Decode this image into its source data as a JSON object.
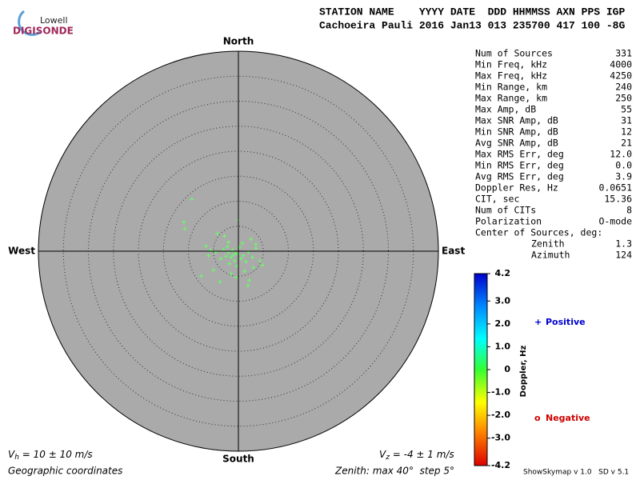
{
  "logo": {
    "top": "Lowell",
    "bottom": "DIGISONDE"
  },
  "header": {
    "line1": "STATION NAME    YYYY DATE  DDD HHMMSS AXN PPS IGP",
    "line2": "Cachoeira Pauli 2016 Jan13 013 235700 417 100 -8G"
  },
  "stats": [
    [
      "Num of Sources",
      331
    ],
    [
      "Min Freq, kHz",
      4000
    ],
    [
      "Max Freq, kHz",
      4250
    ],
    [
      "Min Range, km",
      240
    ],
    [
      "Max Range, km",
      250
    ],
    [
      "Max Amp, dB",
      55
    ],
    [
      "Max SNR Amp, dB",
      31
    ],
    [
      "Min SNR Amp, dB",
      12
    ],
    [
      "Avg SNR Amp, dB",
      21
    ],
    [
      "Max RMS Err, deg",
      "12.0"
    ],
    [
      "Min RMS Err, deg",
      "0.0"
    ],
    [
      "Avg RMS Err, deg",
      3.9
    ],
    [
      "Doppler Res, Hz",
      0.0651
    ],
    [
      "CIT, sec",
      15.36
    ],
    [
      "Num of CITs",
      8
    ],
    [
      "Polarization",
      "O-mode"
    ]
  ],
  "center": {
    "title": "Center of Sources, deg:",
    "rows": [
      [
        "Zenith",
        1.3
      ],
      [
        "Azimuth",
        124
      ]
    ]
  },
  "footer": {
    "vh": {
      "symbol": "V",
      "sub": "h",
      "text": " = 10 ± 10 m/s"
    },
    "vz": {
      "symbol": "V",
      "sub": "z",
      "text": " = -4 ± 1 m/s"
    },
    "coords": "Geographic coordinates",
    "zenith": "Zenith: max 40°  step 5°",
    "version": "ShowSkymap v 1.0   SD v 5.1"
  },
  "chart_data": {
    "type": "scatter",
    "directions": {
      "north": "North",
      "south": "South",
      "east": "East",
      "west": "West"
    },
    "rlim": [
      0,
      40
    ],
    "rticks": [
      5,
      10,
      15,
      20,
      25,
      30,
      35
    ],
    "series": [
      {
        "color": "#66ff66",
        "x": [
          -1,
          -0.5,
          -1.5,
          0,
          -2,
          0.5,
          -1.2,
          -0.8,
          -2.5,
          1,
          -3,
          1.5,
          -1.8,
          0.2,
          -0.3,
          -2.2,
          2,
          -3.5,
          2.8,
          -4.5,
          3.5,
          -5.5,
          4.3,
          -6.5,
          -7.4,
          -3.7,
          1.9,
          3.5,
          0,
          -9.3,
          -10.9,
          -10.7,
          -4.2,
          -2.8,
          2.5,
          1.2,
          -1.5,
          -5,
          4.8,
          -0.5,
          0.8,
          -6,
          3,
          2.2,
          -2
        ],
        "values": [
          -0.8,
          -0.4,
          -1.2,
          -0.6,
          -0.3,
          -1.5,
          0.2,
          -1.9,
          -1.0,
          -0.9,
          0.3,
          -2.1,
          -2.5,
          0.8,
          -3,
          0.9,
          -0.2,
          -1.5,
          -1.2,
          -0.2,
          0.6,
          0.2,
          -1.9,
          1.0,
          -5,
          -6.1,
          -6.9,
          1.4,
          6.2,
          10.4,
          5.8,
          4.5,
          3.5,
          3.0,
          2.4,
          -4.0,
          -4.5,
          -3.8,
          -2.8,
          -5.2,
          1.6,
          -0.9,
          -3.3,
          -5.8,
          1.8
        ]
      }
    ],
    "colorbar": {
      "label": "Doppler, Hz",
      "lim": [
        -4.2,
        4.2
      ],
      "ticks": [
        4.2,
        {
          "value": 3,
          "label": "3.0"
        },
        {
          "value": 2,
          "label": "2.0"
        },
        {
          "value": 1,
          "label": "1.0"
        },
        0,
        {
          "value": -1,
          "label": "-1.0"
        },
        {
          "value": -2,
          "label": "-2.0"
        },
        {
          "value": -3,
          "label": "-3.0"
        },
        -4.2
      ]
    },
    "legend": [
      {
        "marker": "+",
        "label": "Positive",
        "color": "#0000cc"
      },
      {
        "marker": "o",
        "label": "Negative",
        "color": "#cc0000"
      }
    ]
  }
}
